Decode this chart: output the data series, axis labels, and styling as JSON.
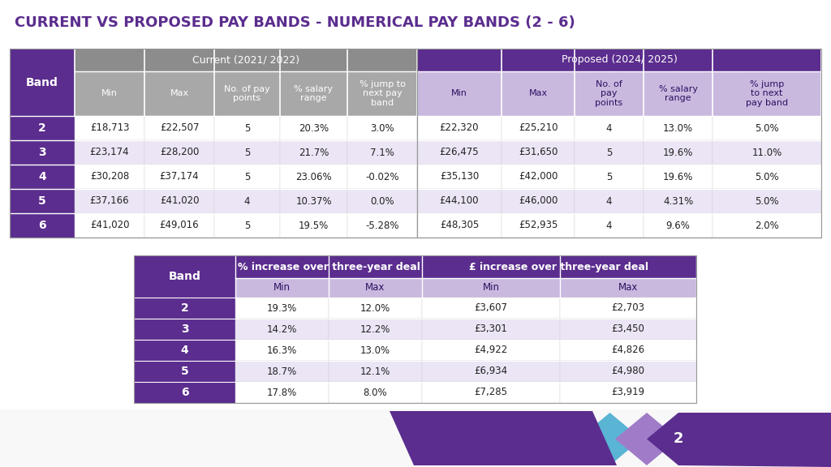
{
  "title": "CURRENT VS PROPOSED PAY BANDS - NUMERICAL PAY BANDS (2 - 6)",
  "title_color": "#5b2d8e",
  "bg_color": "#ffffff",
  "purple_dark": "#5b2d8e",
  "purple_light": "#c9b9df",
  "gray_header": "#8c8c8c",
  "gray_sub": "#a8a8a8",
  "upper_table": {
    "bands": [
      "2",
      "3",
      "4",
      "5",
      "6"
    ],
    "current_min": [
      "£18,713",
      "£23,174",
      "£30,208",
      "£37,166",
      "£41,020"
    ],
    "current_max": [
      "£22,507",
      "£28,200",
      "£37,174",
      "£41,020",
      "£49,016"
    ],
    "current_pts": [
      "5",
      "5",
      "5",
      "4",
      "5"
    ],
    "current_sal": [
      "20.3%",
      "21.7%",
      "23.06%",
      "10.37%",
      "19.5%"
    ],
    "current_jump": [
      "3.0%",
      "7.1%",
      "-0.02%",
      "0.0%",
      "-5.28%"
    ],
    "proposed_min": [
      "£22,320",
      "£26,475",
      "£35,130",
      "£44,100",
      "£48,305"
    ],
    "proposed_max": [
      "£25,210",
      "£31,650",
      "£42,000",
      "£46,000",
      "£52,935"
    ],
    "proposed_pts": [
      "4",
      "5",
      "5",
      "4",
      "4"
    ],
    "proposed_sal": [
      "13.0%",
      "19.6%",
      "19.6%",
      "4.31%",
      "9.6%"
    ],
    "proposed_jump": [
      "5.0%",
      "11.0%",
      "5.0%",
      "5.0%",
      "2.0%"
    ]
  },
  "lower_table": {
    "bands": [
      "2",
      "3",
      "4",
      "5",
      "6"
    ],
    "pct_min": [
      "19.3%",
      "14.2%",
      "16.3%",
      "18.7%",
      "17.8%"
    ],
    "pct_max": [
      "12.0%",
      "12.2%",
      "13.0%",
      "12.1%",
      "8.0%"
    ],
    "gbp_min": [
      "£3,607",
      "£3,301",
      "£4,922",
      "£6,934",
      "£7,285"
    ],
    "gbp_max": [
      "£2,703",
      "£3,450",
      "£4,826",
      "£4,980",
      "£3,919"
    ]
  },
  "deco": {
    "line_color": "#5b2d8e",
    "teal1": "#4db8a0",
    "blue1": "#4aafd4",
    "purple_lt": "#9b7fc4",
    "teal2": "#5bbfbf",
    "purple2": "#7b4fc4"
  }
}
